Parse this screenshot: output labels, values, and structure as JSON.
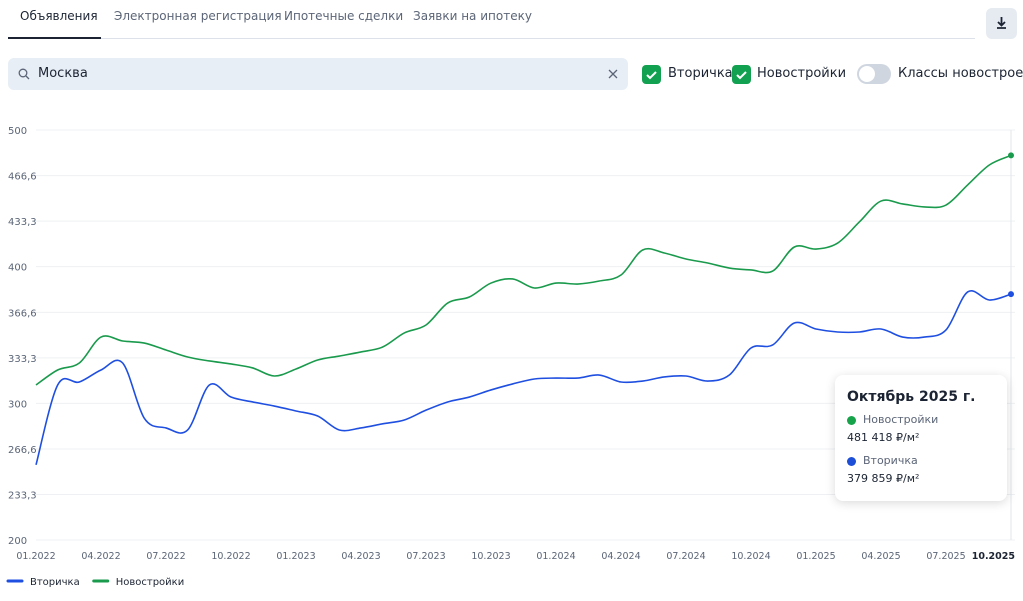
{
  "tabs": [
    "Объявления",
    "Электронная регистрация",
    "Ипотечные сделки",
    "Заявки на ипотеку"
  ],
  "search": {
    "value": "Москва"
  },
  "filters": {
    "checkboxes": [
      "Вторичка",
      "Новостройки"
    ],
    "toggle": "Классы новостроек"
  },
  "chart_data": {
    "type": "line",
    "categories": [
      "01.2022",
      null,
      null,
      "04.2022",
      null,
      null,
      "07.2022",
      null,
      null,
      "10.2022",
      null,
      null,
      "01.2023",
      null,
      null,
      "04.2023",
      null,
      null,
      "07.2023",
      null,
      null,
      "10.2023",
      null,
      null,
      "01.2024",
      null,
      null,
      "04.2024",
      null,
      null,
      "07.2024",
      null,
      null,
      "10.2024",
      null,
      null,
      "01.2025",
      null,
      null,
      "04.2025",
      null,
      null,
      "07.2025",
      null,
      null,
      "10.2025"
    ],
    "series": [
      {
        "name": "Вторичка",
        "color": "#1f4fe0",
        "values": [
          255,
          313.4,
          315.6,
          324.4,
          329.5,
          289,
          282,
          280.5,
          313.4,
          304.6,
          301,
          298,
          294.4,
          290.7,
          280.5,
          282,
          285,
          287.8,
          295,
          301,
          304.6,
          309.8,
          314.2,
          317.8,
          318.5,
          318.5,
          320.7,
          315.6,
          316.3,
          319.3,
          320,
          316.3,
          320.7,
          340.5,
          342.7,
          358.8,
          354.4,
          352.2,
          352.2,
          354.4,
          348.5,
          348.5,
          353.7,
          381.5,
          375.6,
          379.9
        ]
      },
      {
        "name": "Новостройки",
        "color": "#1a9a4c",
        "values": [
          313.4,
          324.4,
          329.5,
          348.5,
          345.6,
          344.1,
          339,
          333.9,
          331,
          328.8,
          325.9,
          320,
          325.1,
          331.7,
          334.6,
          337.6,
          341.2,
          351.5,
          357.3,
          373.4,
          377.8,
          388,
          391,
          384.4,
          388,
          387.3,
          389.5,
          393.9,
          412.2,
          410,
          405.6,
          402.7,
          399,
          397.6,
          396.8,
          414.4,
          412.9,
          417.3,
          432.7,
          448,
          445.9,
          443.7,
          445.1,
          459.8,
          474.4,
          481.4
        ]
      }
    ],
    "ylim": [
      200,
      500
    ],
    "yticks": [
      200,
      {
        "value": 233.3,
        "label": "233,3"
      },
      {
        "value": 266.6,
        "label": "266,6"
      },
      300,
      {
        "value": 333.3,
        "label": "333,3"
      },
      {
        "value": 366.6,
        "label": "366,6"
      },
      400,
      {
        "value": 433.3,
        "label": "433,3"
      },
      {
        "value": 466.6,
        "label": "466,6"
      },
      500
    ],
    "grid": true,
    "tooltip": {
      "title": "Октябрь 2025 г.",
      "items": [
        {
          "name": "Новостройки",
          "value": "481 418 ₽/м²",
          "color": "#16a34a"
        },
        {
          "name": "Вторичка",
          "value": "379 859 ₽/м²",
          "color": "#1d4ed8"
        }
      ]
    }
  }
}
